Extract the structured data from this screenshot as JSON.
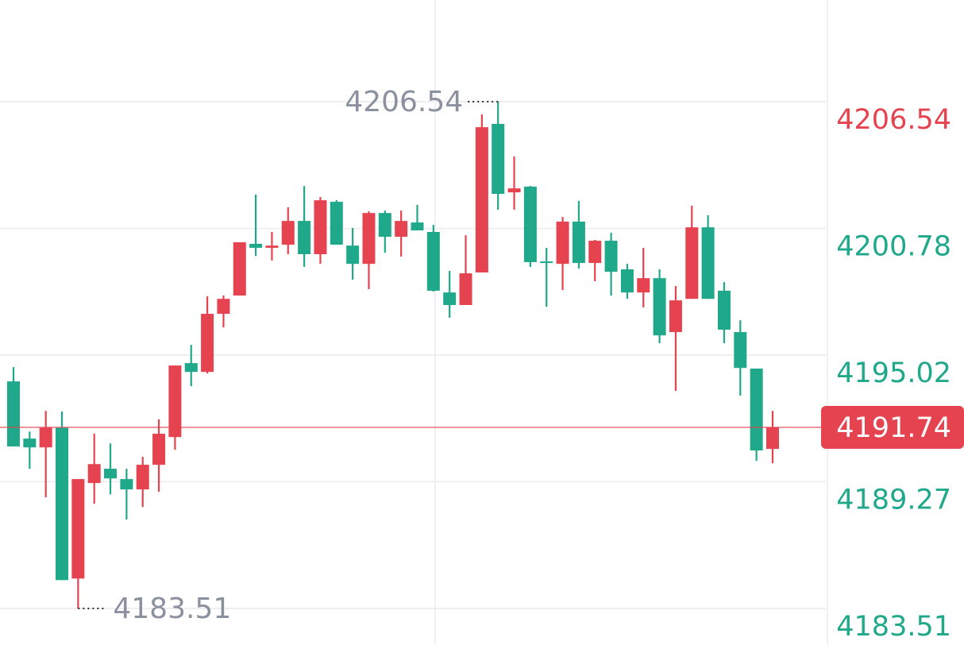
{
  "chart_data": {
    "type": "candlestick",
    "open": [
      4193.83,
      4191.23,
      4190.83,
      4191.73,
      4184.87,
      4189.21,
      4189.86,
      4189.39,
      4188.92,
      4190.04,
      4191.3,
      4194.66,
      4194.26,
      4196.9,
      4197.73,
      4200.08,
      4199.9,
      4200.04,
      4201.12,
      4199.61,
      4201.99,
      4200.0,
      4199.17,
      4201.48,
      4200.4,
      4201.05,
      4200.62,
      4197.87,
      4197.3,
      4198.78,
      4205.53,
      4202.42,
      4202.68,
      4199.28,
      4199.17,
      4201.09,
      4199.21,
      4200.22,
      4198.92,
      4197.87,
      4198.52,
      4196.07,
      4197.58,
      4200.83,
      4197.95,
      4196.07,
      4194.41,
      4190.76
    ],
    "high": [
      4194.48,
      4191.55,
      4192.49,
      4192.46,
      4189.39,
      4191.45,
      4191.01,
      4189.86,
      4190.4,
      4192.1,
      4194.55,
      4195.49,
      4197.69,
      4197.73,
      4200.15,
      4202.32,
      4200.62,
      4201.74,
      4202.71,
      4202.21,
      4202.06,
      4200.8,
      4201.56,
      4201.59,
      4201.59,
      4201.85,
      4200.94,
      4198.85,
      4200.47,
      4205.96,
      4206.54,
      4204.05,
      4202.71,
      4199.9,
      4201.3,
      4202.03,
      4200.26,
      4200.58,
      4199.17,
      4199.9,
      4198.92,
      4198.16,
      4201.81,
      4201.38,
      4198.34,
      4196.61,
      4194.41,
      4192.49
    ],
    "low": [
      4190.87,
      4189.86,
      4188.56,
      4184.8,
      4183.51,
      4188.27,
      4188.7,
      4187.55,
      4188.12,
      4188.81,
      4190.72,
      4193.61,
      4194.19,
      4196.28,
      4197.73,
      4199.53,
      4199.32,
      4199.61,
      4199.03,
      4199.17,
      4200.04,
      4198.45,
      4198.02,
      4199.68,
      4199.5,
      4200.69,
      4197.91,
      4196.72,
      4197.3,
      4198.78,
      4201.63,
      4201.63,
      4199.03,
      4197.22,
      4197.98,
      4198.96,
      4198.38,
      4197.73,
      4197.58,
      4197.19,
      4195.56,
      4193.4,
      4197.58,
      4197.58,
      4195.56,
      4193.18,
      4190.22,
      4190.11
    ],
    "close": [
      4190.87,
      4190.83,
      4191.73,
      4184.8,
      4189.39,
      4190.07,
      4189.42,
      4188.92,
      4190.04,
      4191.45,
      4194.55,
      4194.26,
      4196.9,
      4197.58,
      4200.15,
      4199.9,
      4200.0,
      4201.12,
      4199.61,
      4202.06,
      4200.04,
      4199.17,
      4201.48,
      4200.4,
      4201.12,
      4200.69,
      4197.95,
      4197.3,
      4198.74,
      4205.38,
      4202.35,
      4202.6,
      4199.25,
      4199.21,
      4201.09,
      4199.21,
      4200.22,
      4198.81,
      4197.87,
      4198.52,
      4195.92,
      4197.51,
      4200.83,
      4197.58,
      4196.18,
      4194.44,
      4190.69,
      4191.74
    ],
    "up_color": "#e5434f",
    "down_color": "#1fa88a",
    "ylim": [
      4181.85,
      4211.16
    ],
    "yticks": [
      4183.51,
      4189.27,
      4195.02,
      4200.78,
      4206.54
    ],
    "ytick_colors": [
      "#1fa88a",
      "#1fa88a",
      "#1fa88a",
      "#1fa88a",
      "#e5434f"
    ],
    "grid": true,
    "last_price": 4191.74,
    "annotations": {
      "max": 4206.54,
      "min": 4183.51
    }
  }
}
